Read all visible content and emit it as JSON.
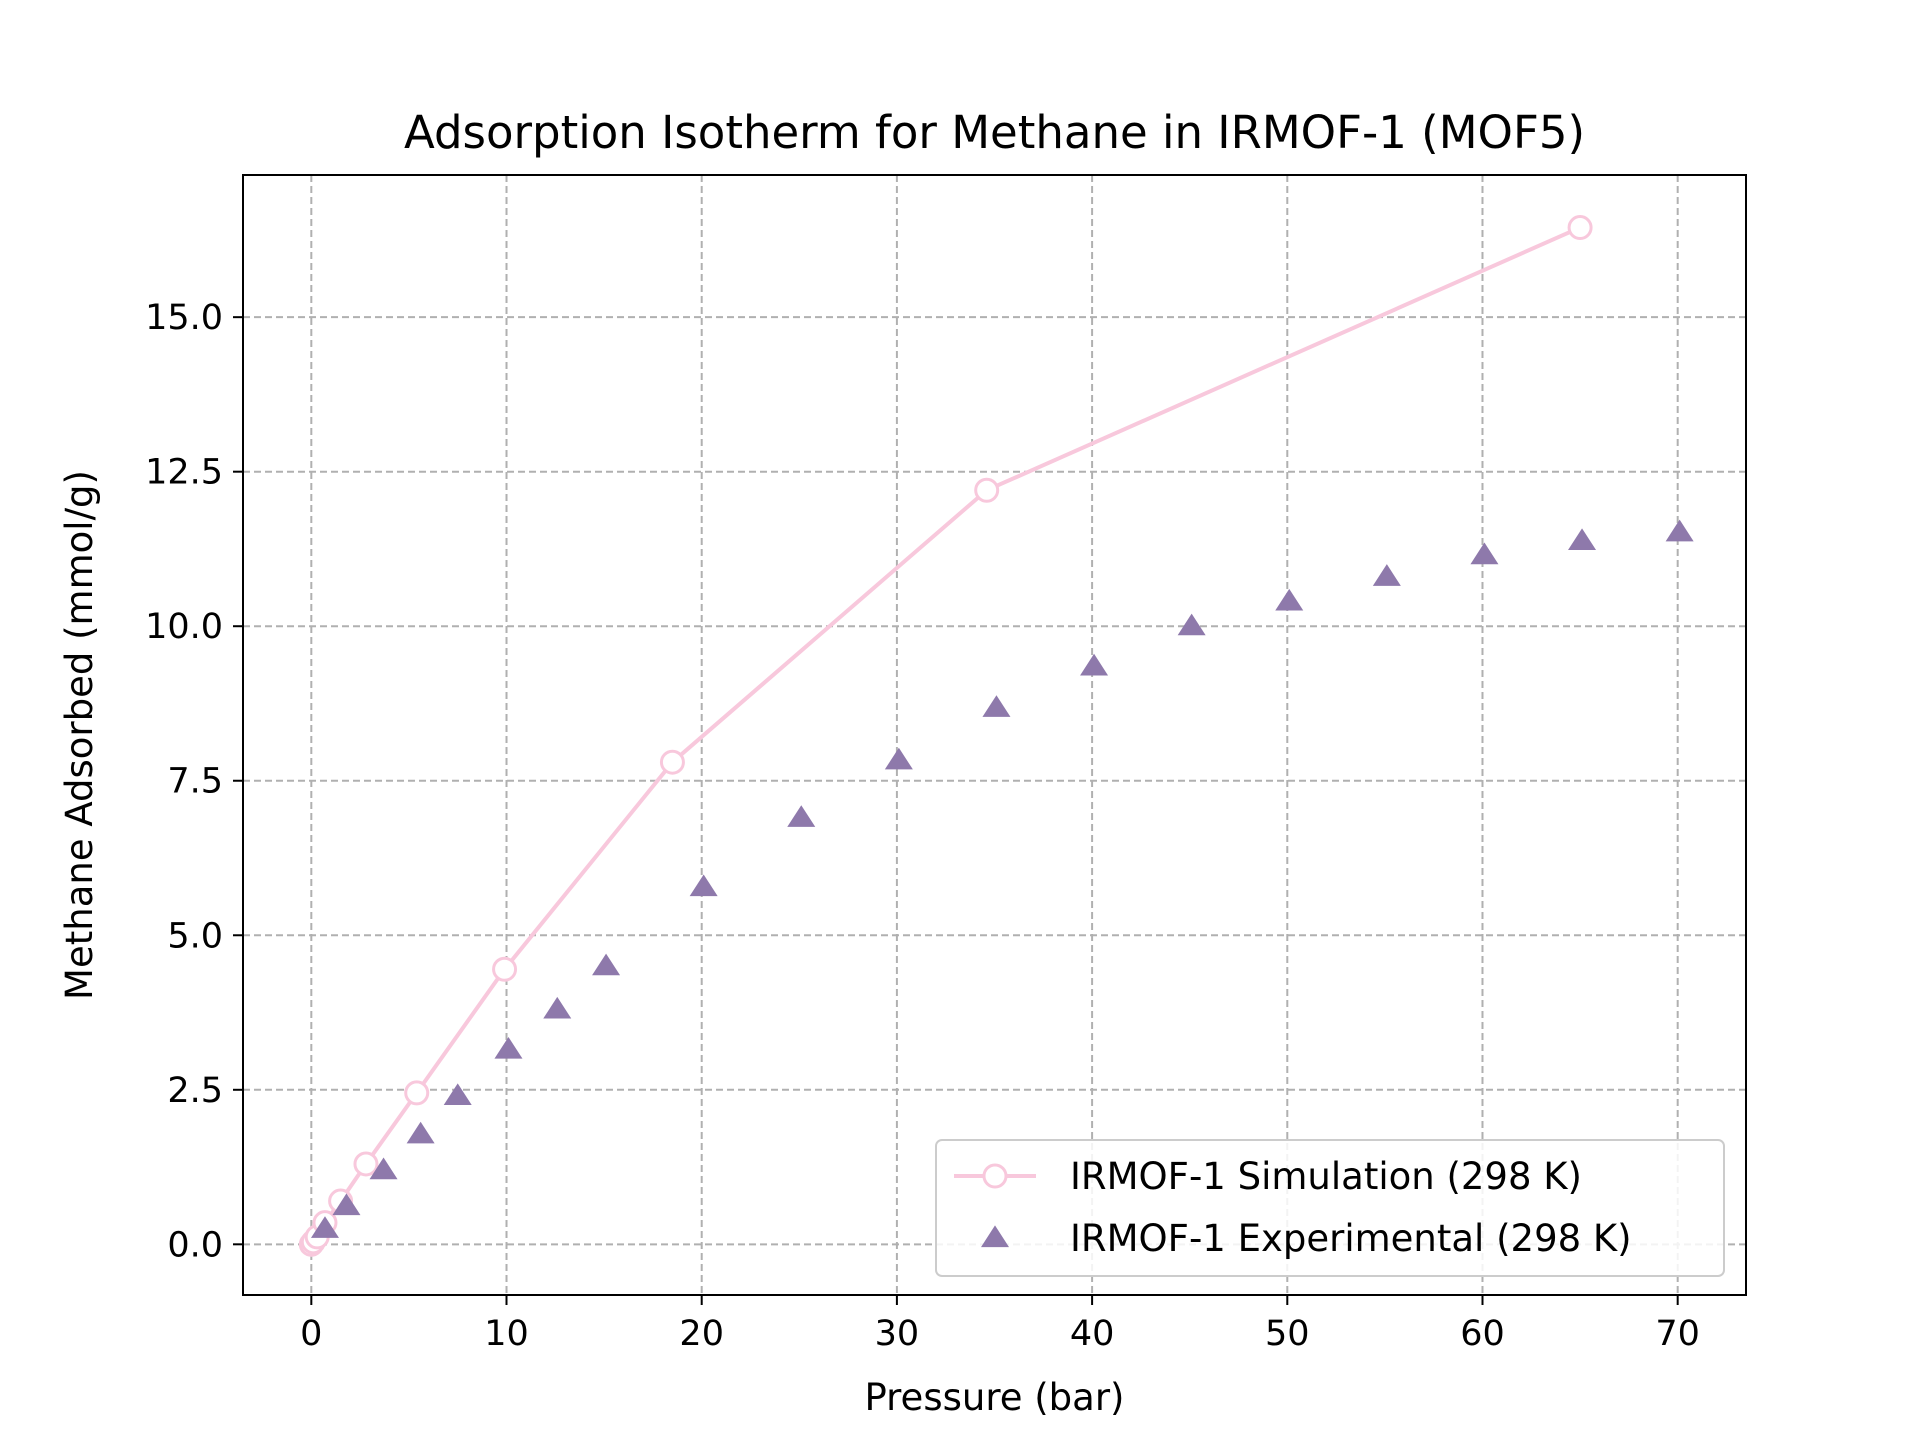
{
  "chart_data": {
    "type": "line",
    "title": "Adsorption Isotherm for Methane in IRMOF-1 (MOF5)",
    "xlabel": "Pressure (bar)",
    "ylabel": "Methane Adsorbed (mmol/g)",
    "xlim": [
      -3.5,
      73.5
    ],
    "ylim": [
      -0.82,
      17.3
    ],
    "xticks": [
      0,
      10,
      20,
      30,
      40,
      50,
      60,
      70
    ],
    "xtick_labels": [
      "0",
      "10",
      "20",
      "30",
      "40",
      "50",
      "60",
      "70"
    ],
    "yticks": [
      0.0,
      2.5,
      5.0,
      7.5,
      10.0,
      12.5,
      15.0
    ],
    "ytick_labels": [
      "0.0",
      "2.5",
      "5.0",
      "7.5",
      "10.0",
      "12.5",
      "15.0"
    ],
    "grid": true,
    "legend_position": "lower-right",
    "series": [
      {
        "name": "IRMOF-1 Simulation (298 K)",
        "style": "line-open-circle",
        "color": "#f8c8dc",
        "x": [
          0.0,
          0.1,
          0.3,
          0.7,
          1.5,
          2.8,
          5.4,
          9.9,
          18.5,
          34.6,
          65.0
        ],
        "y": [
          0.0,
          0.04,
          0.12,
          0.35,
          0.7,
          1.3,
          2.45,
          4.45,
          7.8,
          12.2,
          16.45
        ]
      },
      {
        "name": "IRMOF-1 Experimental (298 K)",
        "style": "triangle",
        "color": "#8e79ab",
        "x": [
          0.7,
          1.8,
          3.7,
          5.6,
          7.5,
          10.1,
          12.6,
          15.1,
          20.1,
          25.1,
          30.1,
          35.1,
          40.1,
          45.1,
          50.1,
          55.1,
          60.1,
          65.1,
          70.1
        ],
        "y": [
          0.25,
          0.62,
          1.2,
          1.78,
          2.4,
          3.15,
          3.8,
          4.5,
          5.78,
          6.9,
          7.83,
          8.68,
          9.35,
          10.0,
          10.4,
          10.8,
          11.15,
          11.38,
          11.52
        ]
      }
    ]
  }
}
